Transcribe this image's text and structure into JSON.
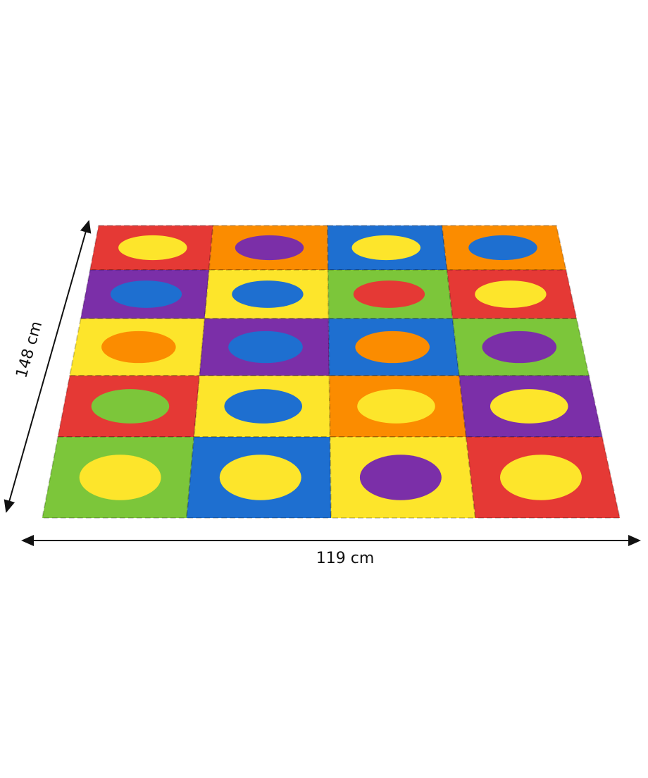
{
  "dimensions": {
    "depth": "148 cm",
    "width": "119 cm"
  }
}
